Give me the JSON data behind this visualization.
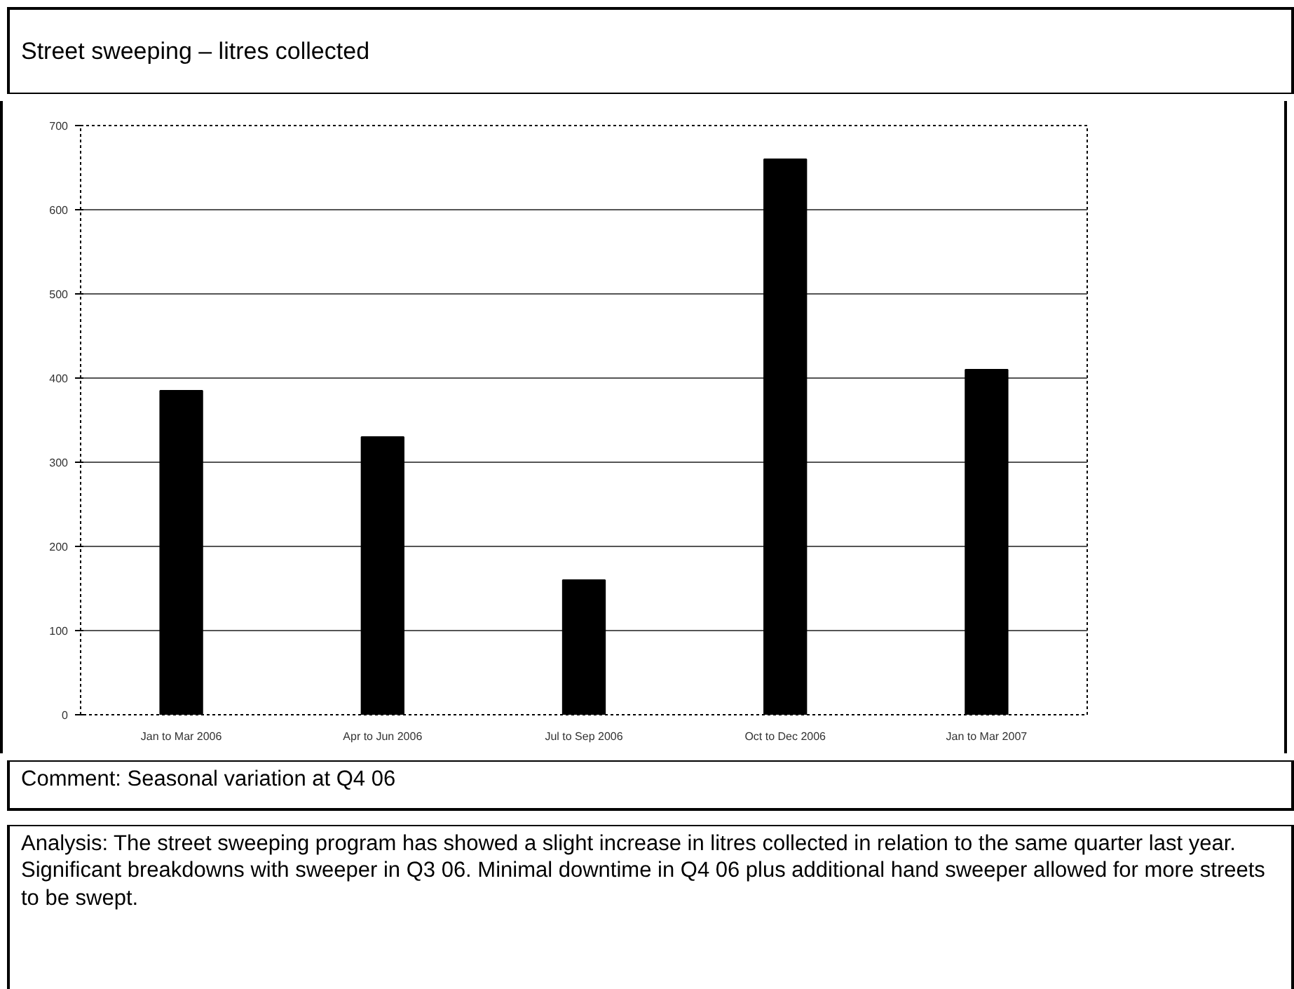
{
  "chart_data": {
    "type": "bar",
    "title": "Street sweeping – litres collected",
    "categories": [
      "Jan to Mar 2006",
      "Apr to Jun 2006",
      "Jul to Sep 2006",
      "Oct to Dec 2006",
      "Jan to Mar 2007"
    ],
    "values": [
      385,
      330,
      160,
      660,
      410
    ],
    "color": "#000000",
    "ylim": [
      0,
      700
    ],
    "yticks": [
      0,
      100,
      200,
      300,
      400,
      500,
      600,
      700
    ],
    "grid": "y",
    "annotations": [
      "Comment: Seasonal variation at Q4 06",
      "Analysis: The street sweeping program has showed a slight increase in litres collected in relation to the same quarter last year. Significant breakdowns with sweeper in Q3 06. Minimal downtime in Q4 06 plus additional hand sweeper allowed for more streets to be swept."
    ]
  }
}
